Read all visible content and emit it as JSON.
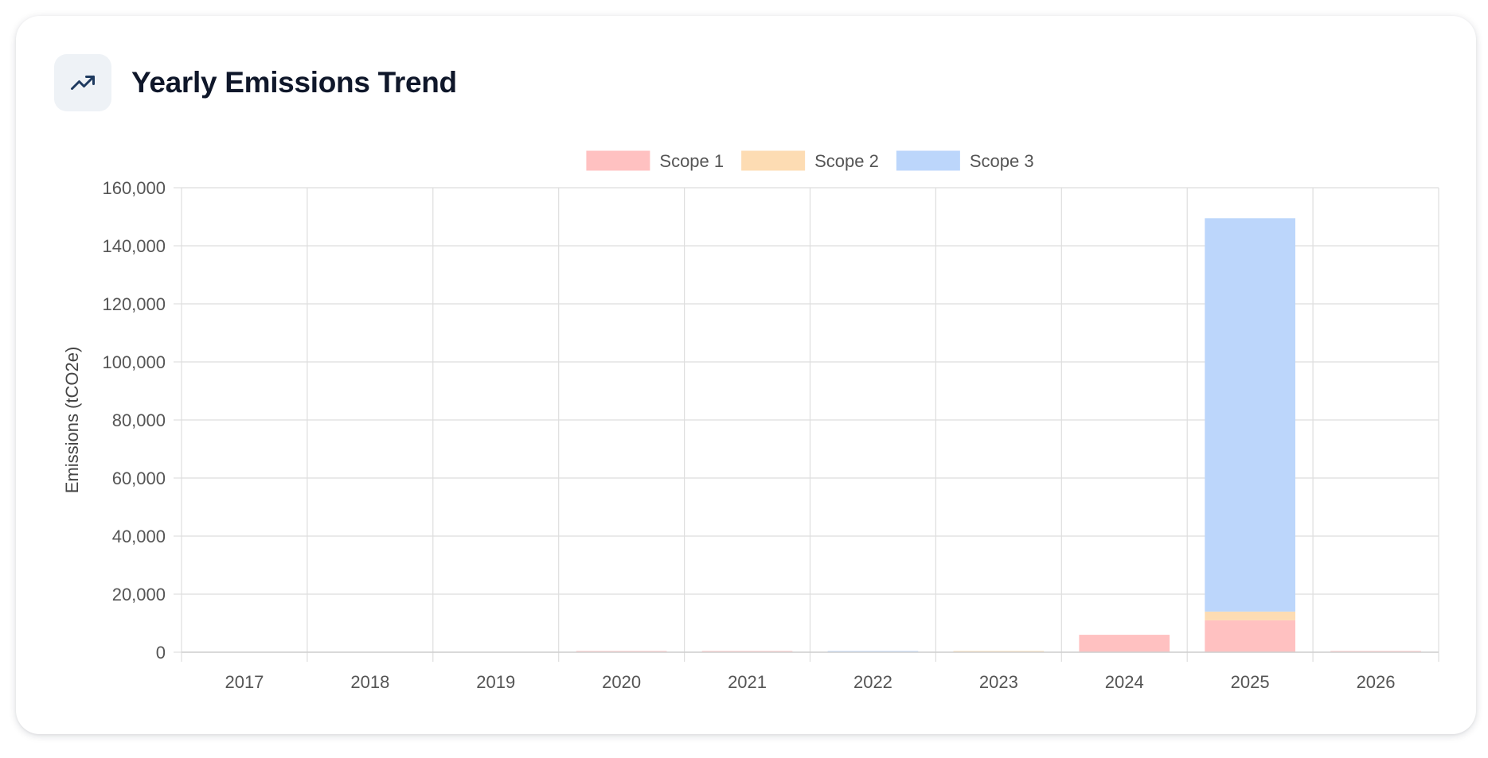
{
  "card": {
    "title": "Yearly Emissions Trend",
    "icon": "trending-up-icon"
  },
  "chart_data": {
    "type": "bar",
    "stacked": true,
    "categories": [
      "2017",
      "2018",
      "2019",
      "2020",
      "2021",
      "2022",
      "2023",
      "2024",
      "2025",
      "2026"
    ],
    "series": [
      {
        "name": "Scope 1",
        "color": "#ffc1c1",
        "values": [
          0,
          0,
          0,
          300,
          300,
          0,
          0,
          6000,
          11000,
          300
        ]
      },
      {
        "name": "Scope 2",
        "color": "#fddcb3",
        "values": [
          0,
          0,
          0,
          0,
          0,
          0,
          300,
          0,
          3000,
          0
        ]
      },
      {
        "name": "Scope 3",
        "color": "#bcd6fb",
        "values": [
          0,
          0,
          0,
          0,
          0,
          300,
          0,
          0,
          135500,
          0
        ]
      }
    ],
    "ylabel": "Emissions (tCO2e)",
    "xlabel": "",
    "ylim": [
      0,
      160000
    ],
    "yticks": [
      0,
      20000,
      40000,
      60000,
      80000,
      100000,
      120000,
      140000,
      160000
    ],
    "ytick_labels": [
      "0",
      "20,000",
      "40,000",
      "60,000",
      "80,000",
      "100,000",
      "120,000",
      "140,000",
      "160,000"
    ],
    "grid": true,
    "legend_position": "top-center"
  }
}
